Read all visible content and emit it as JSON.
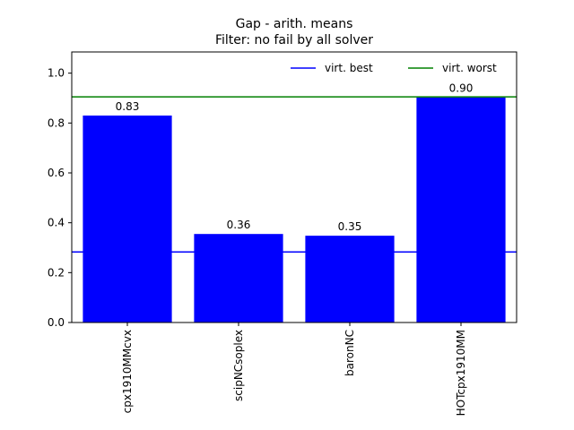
{
  "chart_data": {
    "type": "bar",
    "title": "Gap - arith. means",
    "subtitle": "Filter: no fail by all solver",
    "categories": [
      "cpx1910MMcvx",
      "scipNCsoplex",
      "baronNC",
      "HOTcpx1910MM"
    ],
    "values": [
      0.83,
      0.355,
      0.348,
      0.903
    ],
    "data_labels": [
      "0.83",
      "0.36",
      "0.35",
      "0.90"
    ],
    "xlabel": "",
    "ylabel": "",
    "ylim": [
      0,
      1.085
    ],
    "yticks": [
      0.0,
      0.2,
      0.4,
      0.6,
      0.8,
      1.0
    ],
    "ytick_labels": [
      "0.0",
      "0.2",
      "0.4",
      "0.6",
      "0.8",
      "1.0"
    ],
    "bar_color": "#0000ff",
    "reference_lines": [
      {
        "name": "virt. best",
        "value": 0.283,
        "color": "#0000ff"
      },
      {
        "name": "virt. worst",
        "value": 0.905,
        "color": "#008000"
      }
    ],
    "legend": {
      "placement": "top-right",
      "entries": [
        "virt. best",
        "virt. worst"
      ]
    },
    "grid": false
  }
}
